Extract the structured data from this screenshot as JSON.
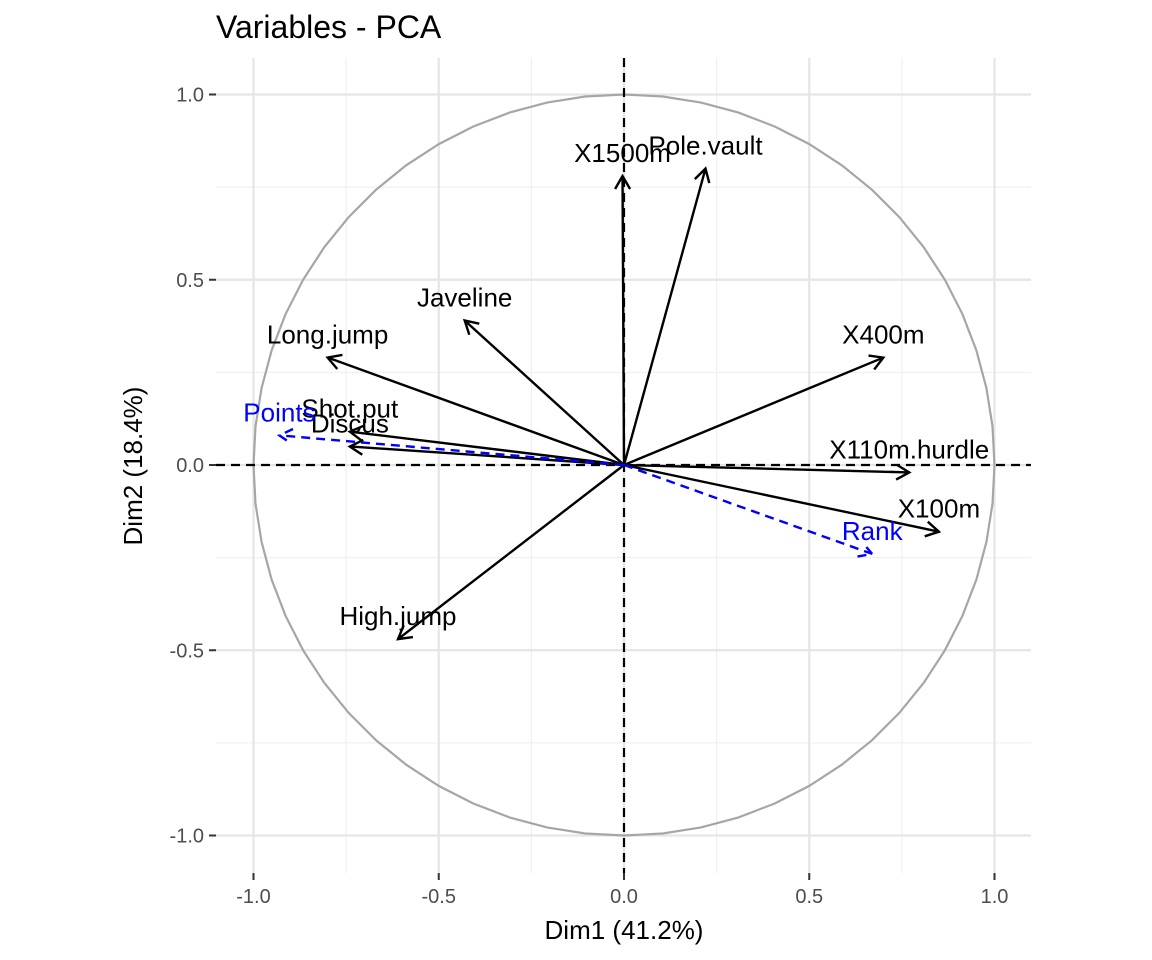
{
  "chart_data": {
    "type": "scatter",
    "subtype": "pca-correlation-circle",
    "title": "Variables - PCA",
    "xlabel": "Dim1 (41.2%)",
    "ylabel": "Dim2 (18.4%)",
    "xlim": [
      -1.1,
      1.1
    ],
    "ylim": [
      -1.1,
      1.1
    ],
    "x_ticks": [
      "-1.0",
      "-0.5",
      "0.0",
      "0.5",
      "1.0"
    ],
    "y_ticks": [
      "1.0",
      "0.5",
      "0.0",
      "-0.5",
      "-1.0"
    ],
    "grid": true,
    "unit_circle": true,
    "colors": {
      "active": "#000000",
      "supplementary": "#0000ff",
      "circle": "#a6a6a6",
      "grid": "#e5e5e5"
    },
    "series": [
      {
        "name": "active",
        "color": "#000000",
        "line": "solid",
        "points": [
          {
            "label": "X100m",
            "x": 0.85,
            "y": -0.18
          },
          {
            "label": "Long.jump",
            "x": -0.8,
            "y": 0.29
          },
          {
            "label": "Shot.put",
            "x": -0.74,
            "y": 0.09
          },
          {
            "label": "High.jump",
            "x": -0.61,
            "y": -0.47
          },
          {
            "label": "X400m",
            "x": 0.7,
            "y": 0.29
          },
          {
            "label": "X110m.hurdle",
            "x": 0.77,
            "y": -0.02
          },
          {
            "label": "Discus",
            "x": -0.74,
            "y": 0.05
          },
          {
            "label": "Pole.vault",
            "x": 0.22,
            "y": 0.8
          },
          {
            "label": "Javeline",
            "x": -0.43,
            "y": 0.39
          },
          {
            "label": "X1500m",
            "x": -0.004,
            "y": 0.78
          }
        ]
      },
      {
        "name": "supplementary",
        "color": "#0000ff",
        "line": "dashed",
        "points": [
          {
            "label": "Rank",
            "x": 0.67,
            "y": -0.24
          },
          {
            "label": "Points",
            "x": -0.93,
            "y": 0.08
          }
        ]
      }
    ]
  }
}
